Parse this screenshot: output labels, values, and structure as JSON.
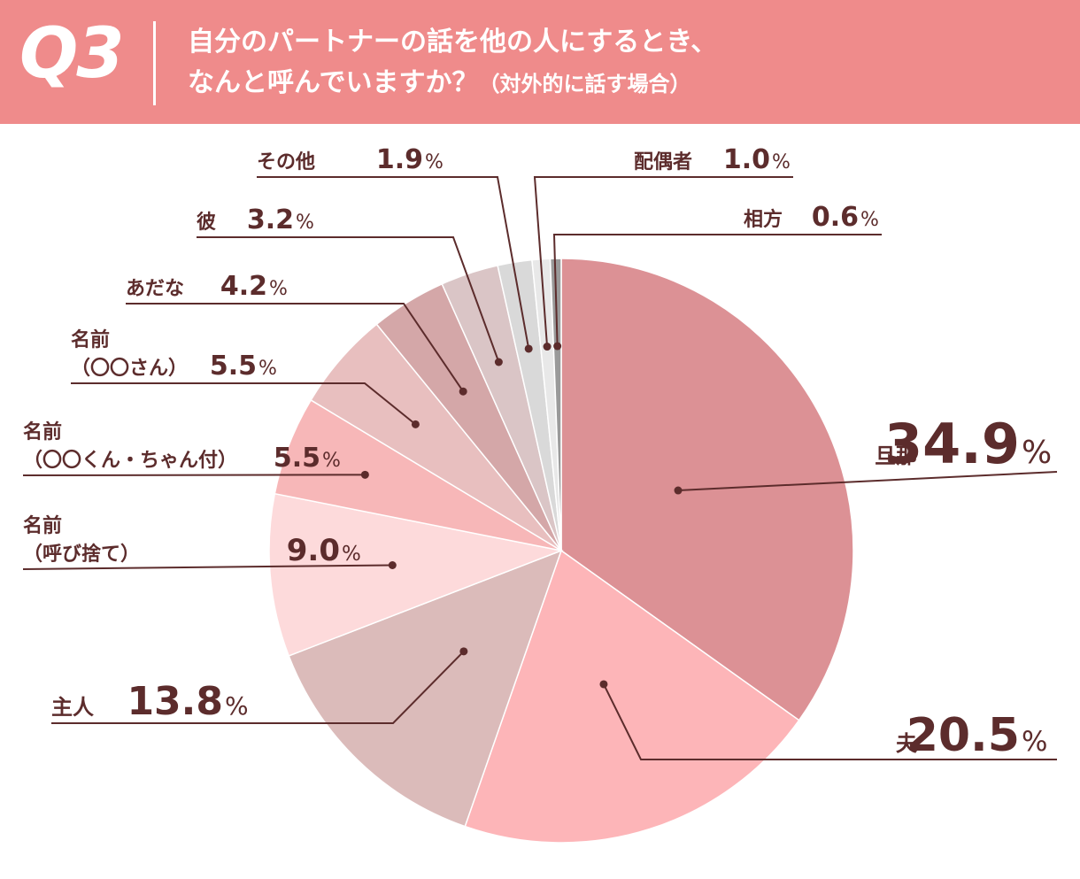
{
  "header": {
    "qnum": "Q3",
    "line1": "自分のパートナーの話を他の人にするとき、",
    "line2_main": "なんと呼んでいますか？",
    "line2_note": "（対外的に話す場合）"
  },
  "percent_sign": "%",
  "chart_data": {
    "type": "pie",
    "title": "自分のパートナーの話を他の人にするとき、なんと呼んでいますか？（対外的に話す場合）",
    "unit": "%",
    "slices": [
      {
        "label": "旦那",
        "value": 34.9,
        "value_label": "34.9",
        "color": "#dc9195"
      },
      {
        "label": "夫",
        "value": 20.5,
        "value_label": "20.5",
        "color": "#fdb5b8"
      },
      {
        "label": "主人",
        "value": 13.8,
        "value_label": "13.8",
        "color": "#dbbbba"
      },
      {
        "label": "名前（呼び捨て）",
        "label_lines": [
          "名前",
          "（呼び捨て）"
        ],
        "value": 9.0,
        "value_label": "9.0",
        "color": "#fddadb"
      },
      {
        "label": "名前（〇〇くん・ちゃん付）",
        "label_lines": [
          "名前",
          "（〇〇くん・ちゃん付）"
        ],
        "value": 5.5,
        "value_label": "5.5",
        "color": "#f7b7b8"
      },
      {
        "label": "名前（〇〇さん）",
        "label_lines": [
          "名前",
          "（〇〇さん）"
        ],
        "value": 5.5,
        "value_label": "5.5",
        "color": "#e8bfbf"
      },
      {
        "label": "あだな",
        "value": 4.2,
        "value_label": "4.2",
        "color": "#d4a7a8"
      },
      {
        "label": "彼",
        "value": 3.2,
        "value_label": "3.2",
        "color": "#dac5c6"
      },
      {
        "label": "その他",
        "value": 1.9,
        "value_label": "1.9",
        "color": "#d9d9d9"
      },
      {
        "label": "配偶者",
        "value": 1.0,
        "value_label": "1.0",
        "color": "#e8e8e8"
      },
      {
        "label": "相方",
        "value": 0.6,
        "value_label": "0.6",
        "color": "#9a9a9a"
      }
    ]
  }
}
